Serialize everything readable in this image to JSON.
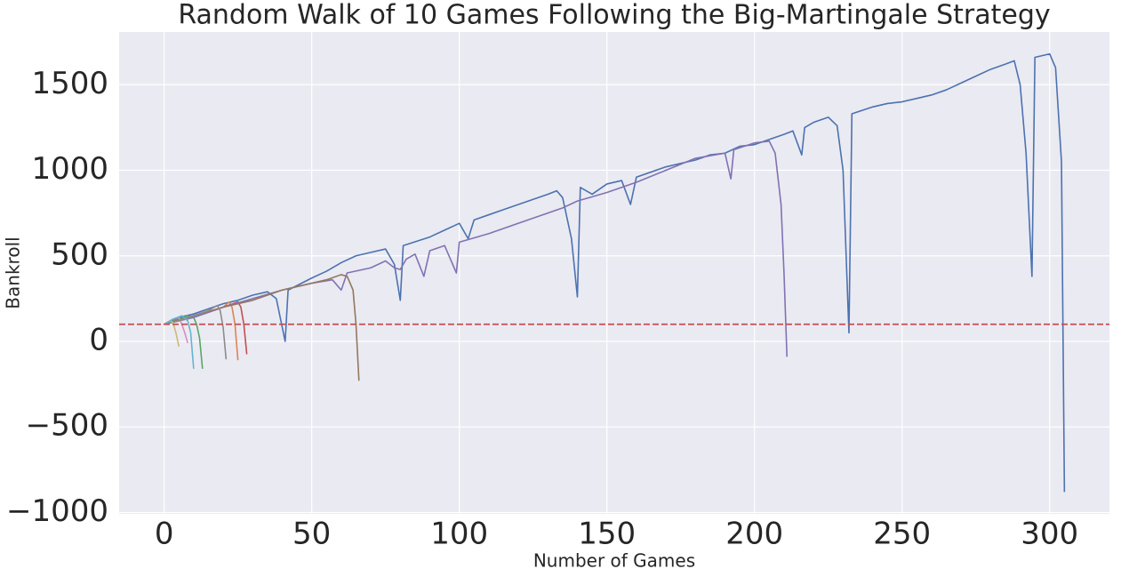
{
  "chart_data": {
    "type": "line",
    "title": "Random Walk of 10 Games Following the Big-Martingale Strategy",
    "x_label": "Number of Games",
    "y_label": "Bankroll",
    "xlim": [
      -15.25,
      320.25
    ],
    "ylim": [
      -1008,
      1808
    ],
    "xticks": [
      0,
      50,
      100,
      150,
      200,
      250,
      300
    ],
    "yticks": [
      {
        "value": -1000,
        "label": "−1000"
      },
      {
        "value": -500,
        "label": "−500"
      },
      0,
      500,
      1000,
      1500
    ],
    "grid": true,
    "reference_line": {
      "value": 100,
      "color": "#c44e52"
    },
    "series": [
      {
        "color": "#4c72b0",
        "x": [
          0,
          5,
          10,
          15,
          20,
          25,
          30,
          35,
          38,
          41,
          42,
          50,
          55,
          60,
          65,
          70,
          75,
          78,
          80,
          81,
          90,
          95,
          100,
          103,
          105,
          110,
          115,
          120,
          125,
          130,
          133,
          135,
          138,
          140,
          141,
          145,
          150,
          155,
          158,
          160,
          165,
          170,
          175,
          180,
          185,
          190,
          195,
          200,
          205,
          210,
          213,
          216,
          217,
          220,
          225,
          228,
          230,
          232,
          233,
          240,
          245,
          250,
          255,
          260,
          265,
          270,
          275,
          280,
          285,
          288,
          290,
          292,
          294,
          295,
          300,
          302,
          304,
          305
        ],
        "values": [
          100,
          140,
          160,
          190,
          220,
          240,
          270,
          290,
          250,
          0,
          300,
          370,
          410,
          460,
          500,
          520,
          540,
          450,
          240,
          560,
          610,
          650,
          690,
          600,
          710,
          740,
          770,
          800,
          830,
          860,
          880,
          840,
          600,
          260,
          900,
          860,
          920,
          940,
          800,
          960,
          990,
          1020,
          1040,
          1060,
          1090,
          1100,
          1140,
          1150,
          1180,
          1210,
          1230,
          1090,
          1250,
          1280,
          1310,
          1260,
          1000,
          50,
          1330,
          1370,
          1390,
          1400,
          1420,
          1440,
          1470,
          1510,
          1550,
          1590,
          1620,
          1640,
          1500,
          1100,
          380,
          1660,
          1680,
          1600,
          1050,
          -880
        ]
      },
      {
        "color": "#dd8452",
        "x": [
          0,
          5,
          10,
          15,
          20,
          22,
          23,
          24,
          25
        ],
        "values": [
          100,
          130,
          140,
          170,
          200,
          230,
          200,
          100,
          -110
        ]
      },
      {
        "color": "#55a868",
        "x": [
          0,
          5,
          8,
          10,
          11,
          12,
          13
        ],
        "values": [
          100,
          130,
          150,
          140,
          100,
          20,
          -160
        ]
      },
      {
        "color": "#c44e52",
        "x": [
          0,
          5,
          10,
          15,
          20,
          25,
          26,
          27,
          28
        ],
        "values": [
          100,
          120,
          150,
          170,
          200,
          230,
          200,
          100,
          -75
        ]
      },
      {
        "color": "#8172b3",
        "x": [
          0,
          10,
          20,
          30,
          40,
          50,
          57,
          60,
          62,
          70,
          75,
          78,
          80,
          82,
          85,
          88,
          90,
          95,
          99,
          100,
          110,
          120,
          130,
          135,
          140,
          150,
          160,
          170,
          180,
          190,
          192,
          193,
          200,
          205,
          207,
          209,
          210,
          211
        ],
        "values": [
          100,
          140,
          200,
          250,
          300,
          340,
          360,
          300,
          400,
          430,
          470,
          430,
          420,
          480,
          510,
          380,
          530,
          560,
          400,
          580,
          630,
          690,
          750,
          780,
          820,
          870,
          930,
          1000,
          1070,
          1100,
          950,
          1120,
          1160,
          1170,
          1100,
          800,
          400,
          -90
        ]
      },
      {
        "color": "#937860",
        "x": [
          0,
          10,
          20,
          30,
          40,
          50,
          55,
          60,
          62,
          64,
          65,
          66
        ],
        "values": [
          100,
          150,
          200,
          240,
          300,
          340,
          360,
          390,
          380,
          300,
          100,
          -230
        ]
      },
      {
        "color": "#da8bc3",
        "x": [
          0,
          3,
          5,
          6,
          7,
          8
        ],
        "values": [
          100,
          130,
          140,
          100,
          50,
          -10
        ]
      },
      {
        "color": "#8c8c8c",
        "x": [
          0,
          5,
          10,
          15,
          18,
          19,
          20,
          21
        ],
        "values": [
          100,
          120,
          150,
          180,
          210,
          180,
          80,
          -105
        ]
      },
      {
        "color": "#ccb974",
        "x": [
          0,
          2,
          3,
          4,
          5
        ],
        "values": [
          100,
          120,
          110,
          50,
          -30
        ]
      },
      {
        "color": "#64b5cd",
        "x": [
          0,
          3,
          6,
          8,
          9,
          10
        ],
        "values": [
          100,
          130,
          150,
          120,
          50,
          -160
        ]
      }
    ]
  }
}
